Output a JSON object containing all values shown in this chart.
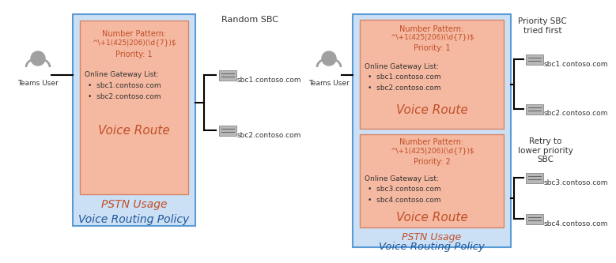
{
  "bg_color": "#ffffff",
  "salmon_color": "#f5b8a0",
  "light_blue_color": "#cce0f5",
  "border_blue": "#5b9bd5",
  "border_salmon": "#d4856a",
  "text_dark": "#333333",
  "text_orange": "#c0502a",
  "text_blue": "#1e5799",
  "user_color": "#a0a0a0",
  "sbc_icon_color": "#b8b8b8",
  "left_panel": {
    "title": "Number Pattern:",
    "pattern": "^\\+1(425|206)(\\d{7})$",
    "priority": "Priority: 1",
    "gateway_title": "Online Gateway List:",
    "gateways": [
      "sbc1.contoso.com",
      "sbc2.contoso.com"
    ],
    "voice_route": "Voice Route",
    "pstn": "PSTN Usage",
    "policy": "Voice Routing Policy",
    "label": "Random SBC",
    "sbc1": "sbc1.contoso.com",
    "sbc2": "sbc2.contoso.com"
  },
  "right_panel": {
    "top_title": "Number Pattern:",
    "top_pattern": "^\\+1(425|206)(\\d{7})$",
    "top_priority": "Priority: 1",
    "top_gateway_title": "Online Gateway List:",
    "top_gateways": [
      "sbc1.contoso.com",
      "sbc2.contoso.com"
    ],
    "top_voice_route": "Voice Route",
    "bot_title": "Number Pattern:",
    "bot_pattern": "^\\+1(425|206)(\\d{7})$",
    "bot_priority": "Priority: 2",
    "bot_gateway_title": "Online Gateway List:",
    "bot_gateways": [
      "sbc3.contoso.com",
      "sbc4.contoso.com"
    ],
    "bot_voice_route": "Voice Route",
    "pstn": "PSTN Usage",
    "policy": "Voice Routing Policy",
    "label_top": "Priority SBC\ntried first",
    "label_bot": "Retry to\nlower priority\nSBC",
    "sbc1": "sbc1.contoso.com",
    "sbc2": "sbc2.contoso.com",
    "sbc3": "sbc3.contoso.com",
    "sbc4": "sbc4.contoso.com"
  }
}
